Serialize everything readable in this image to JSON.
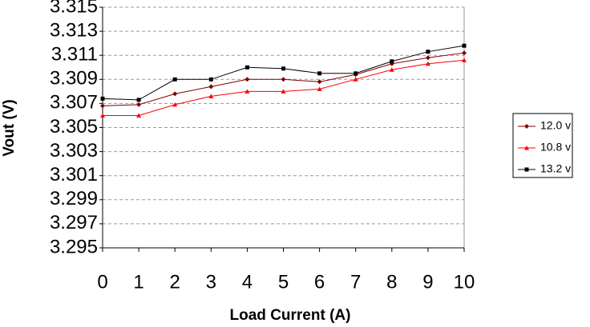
{
  "chart_data": {
    "type": "line",
    "x_label": "Load Current (A)",
    "y_label": "Vout (V)",
    "x": [
      0,
      1,
      2,
      3,
      4,
      5,
      6,
      7,
      8,
      9,
      10
    ],
    "xlim": [
      0,
      10
    ],
    "xticks": [
      0,
      1,
      2,
      3,
      4,
      5,
      6,
      7,
      8,
      9,
      10
    ],
    "ylim": [
      3.295,
      3.315
    ],
    "yticks": [
      3.295,
      3.297,
      3.299,
      3.301,
      3.303,
      3.305,
      3.307,
      3.309,
      3.311,
      3.313,
      3.315
    ],
    "grid": true,
    "legend": "right",
    "series": [
      {
        "name": "12.0 v",
        "color": "#800000",
        "marker": "diamond",
        "values": [
          3.3068,
          3.3069,
          3.3078,
          3.3084,
          3.309,
          3.309,
          3.3088,
          3.3094,
          3.3103,
          3.3108,
          3.3112
        ]
      },
      {
        "name": "10.8 v",
        "color": "#ff0000",
        "marker": "triangle",
        "values": [
          3.306,
          3.306,
          3.3069,
          3.3076,
          3.308,
          3.308,
          3.3082,
          3.309,
          3.3098,
          3.3103,
          3.3106
        ]
      },
      {
        "name": "13.2 v",
        "color": "#000000",
        "marker": "square",
        "values": [
          3.3074,
          3.3073,
          3.309,
          3.309,
          3.31,
          3.3099,
          3.3095,
          3.3095,
          3.3105,
          3.3113,
          3.3118
        ]
      }
    ]
  }
}
